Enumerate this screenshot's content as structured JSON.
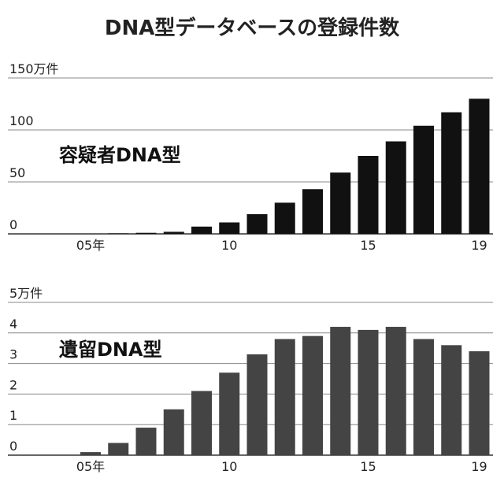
{
  "title": "DNA型データベースの登録件数",
  "chart_data": [
    {
      "type": "bar",
      "annotation": "容疑者DNA型",
      "categories": [
        "05年",
        null,
        null,
        null,
        null,
        "10",
        null,
        null,
        null,
        null,
        "15",
        null,
        null,
        null,
        "19"
      ],
      "values": [
        0,
        0.5,
        1,
        2,
        7,
        11,
        19,
        30,
        43,
        59,
        75,
        89,
        104,
        117,
        130
      ],
      "color": "#111111",
      "ylim": [
        0,
        150
      ],
      "yticks": [
        0,
        50,
        100,
        {
          "value": 150,
          "label": "150万件"
        }
      ],
      "grid": true
    },
    {
      "type": "bar",
      "annotation": "遺留DNA型",
      "categories": [
        "05年",
        null,
        null,
        null,
        null,
        "10",
        null,
        null,
        null,
        null,
        "15",
        null,
        null,
        null,
        "19"
      ],
      "values": [
        0.1,
        0.4,
        0.9,
        1.5,
        2.1,
        2.7,
        3.3,
        3.8,
        3.9,
        4.2,
        4.1,
        4.2,
        3.8,
        3.6,
        3.4
      ],
      "color": "#444444",
      "ylim": [
        0,
        5
      ],
      "yticks": [
        0,
        1,
        2,
        3,
        4,
        {
          "value": 5,
          "label": "5万件"
        }
      ],
      "grid": true
    }
  ]
}
